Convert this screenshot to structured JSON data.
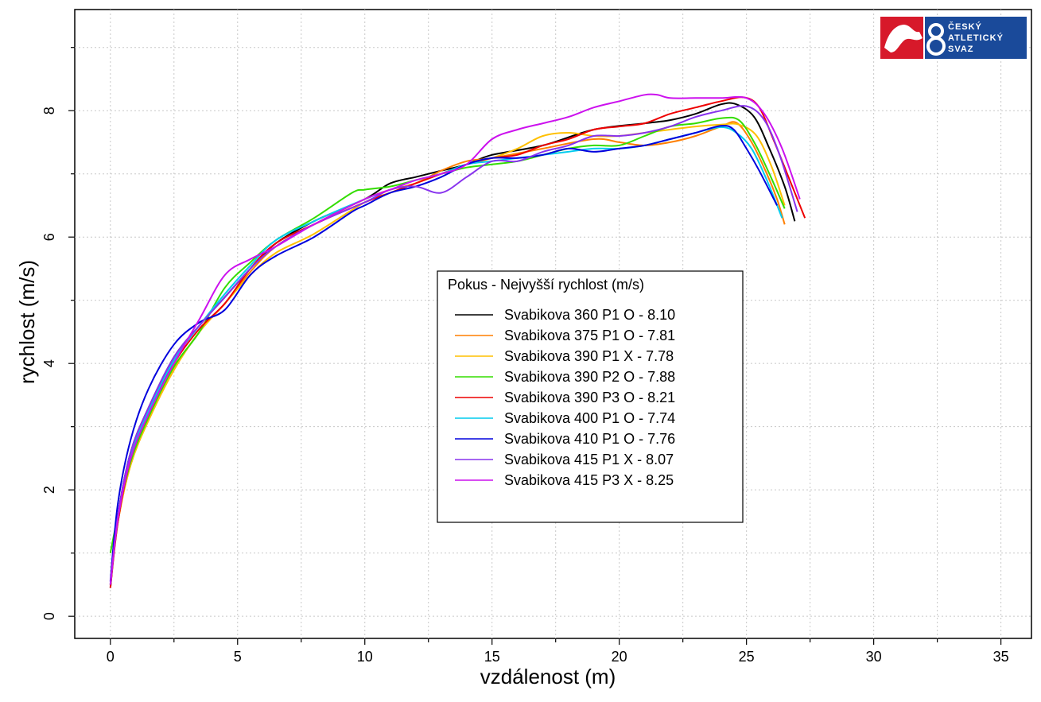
{
  "chart_data": {
    "type": "line",
    "xlabel": "vzdálenost (m)",
    "ylabel": "rychlost (m/s)",
    "xlim": [
      -1.4,
      36.2
    ],
    "ylim": [
      -0.35,
      9.6
    ],
    "xticks": [
      0,
      5,
      10,
      15,
      20,
      25,
      30,
      35
    ],
    "yticks": [
      0,
      2,
      4,
      6,
      8
    ],
    "grid": true,
    "legend": {
      "title": "Pokus - Nejvyšší rychlost (m/s)",
      "placement": "center"
    },
    "series": [
      {
        "name": "Svabikova 360 P1 O - 8.10",
        "color": "#000000",
        "points": [
          [
            0,
            0.45
          ],
          [
            0.3,
            1.6
          ],
          [
            0.8,
            2.6
          ],
          [
            1.5,
            3.3
          ],
          [
            2.5,
            4.1
          ],
          [
            3.5,
            4.6
          ],
          [
            4.5,
            5.05
          ],
          [
            5.5,
            5.5
          ],
          [
            6.5,
            5.9
          ],
          [
            8,
            6.25
          ],
          [
            10,
            6.6
          ],
          [
            11,
            6.85
          ],
          [
            12,
            6.95
          ],
          [
            13,
            7.05
          ],
          [
            14,
            7.15
          ],
          [
            15,
            7.3
          ],
          [
            17,
            7.45
          ],
          [
            19,
            7.7
          ],
          [
            21,
            7.8
          ],
          [
            22,
            7.85
          ],
          [
            23,
            7.95
          ],
          [
            24,
            8.1
          ],
          [
            24.6,
            8.1
          ],
          [
            25.3,
            7.9
          ],
          [
            25.9,
            7.4
          ],
          [
            26.5,
            6.8
          ],
          [
            26.9,
            6.25
          ]
        ]
      },
      {
        "name": "Svabikova 375 P1 O - 7.81",
        "color": "#ff7f00",
        "points": [
          [
            0,
            0.5
          ],
          [
            0.3,
            1.5
          ],
          [
            0.8,
            2.4
          ],
          [
            1.5,
            3.1
          ],
          [
            2.5,
            3.9
          ],
          [
            3.5,
            4.5
          ],
          [
            4.5,
            4.95
          ],
          [
            5.5,
            5.45
          ],
          [
            6.5,
            5.85
          ],
          [
            8,
            6.2
          ],
          [
            10,
            6.6
          ],
          [
            11,
            6.75
          ],
          [
            12,
            6.85
          ],
          [
            13,
            7.05
          ],
          [
            14,
            7.2
          ],
          [
            15,
            7.25
          ],
          [
            17,
            7.4
          ],
          [
            19,
            7.55
          ],
          [
            20,
            7.5
          ],
          [
            21,
            7.45
          ],
          [
            22,
            7.5
          ],
          [
            23,
            7.6
          ],
          [
            24,
            7.75
          ],
          [
            24.6,
            7.81
          ],
          [
            25.2,
            7.5
          ],
          [
            25.8,
            7.0
          ],
          [
            26.2,
            6.6
          ],
          [
            26.5,
            6.2
          ]
        ]
      },
      {
        "name": "Svabikova 390 P1 X - 7.78",
        "color": "#ffc000",
        "points": [
          [
            0,
            0.5
          ],
          [
            0.3,
            1.5
          ],
          [
            0.8,
            2.4
          ],
          [
            1.5,
            3.1
          ],
          [
            2.5,
            3.9
          ],
          [
            3.5,
            4.5
          ],
          [
            4.5,
            4.95
          ],
          [
            5.5,
            5.4
          ],
          [
            6.5,
            5.75
          ],
          [
            8,
            6.05
          ],
          [
            10,
            6.55
          ],
          [
            11,
            6.7
          ],
          [
            12,
            6.85
          ],
          [
            13,
            7.0
          ],
          [
            14,
            7.15
          ],
          [
            15,
            7.25
          ],
          [
            16,
            7.4
          ],
          [
            17,
            7.6
          ],
          [
            18,
            7.65
          ],
          [
            19,
            7.6
          ],
          [
            20,
            7.6
          ],
          [
            21,
            7.65
          ],
          [
            22,
            7.7
          ],
          [
            23,
            7.75
          ],
          [
            24,
            7.78
          ],
          [
            24.7,
            7.78
          ],
          [
            25.4,
            7.6
          ],
          [
            26,
            7.1
          ],
          [
            26.5,
            6.5
          ]
        ]
      },
      {
        "name": "Svabikova 390 P2 O - 7.88",
        "color": "#33dd00",
        "points": [
          [
            0,
            1.0
          ],
          [
            0.3,
            1.6
          ],
          [
            0.8,
            2.45
          ],
          [
            1.5,
            3.15
          ],
          [
            2.5,
            3.95
          ],
          [
            3.5,
            4.5
          ],
          [
            4.5,
            5.2
          ],
          [
            5.5,
            5.6
          ],
          [
            6.5,
            5.95
          ],
          [
            8,
            6.3
          ],
          [
            9.5,
            6.7
          ],
          [
            10,
            6.75
          ],
          [
            11,
            6.8
          ],
          [
            12,
            6.9
          ],
          [
            13,
            7.0
          ],
          [
            14,
            7.1
          ],
          [
            15,
            7.15
          ],
          [
            16,
            7.2
          ],
          [
            17,
            7.3
          ],
          [
            18,
            7.4
          ],
          [
            19,
            7.45
          ],
          [
            20,
            7.45
          ],
          [
            21,
            7.6
          ],
          [
            22,
            7.75
          ],
          [
            23,
            7.8
          ],
          [
            24,
            7.88
          ],
          [
            24.7,
            7.85
          ],
          [
            25.3,
            7.5
          ],
          [
            25.9,
            7.0
          ],
          [
            26.5,
            6.45
          ]
        ]
      },
      {
        "name": "Svabikova 390 P3 O - 8.21",
        "color": "#ee0000",
        "points": [
          [
            0,
            0.45
          ],
          [
            0.3,
            1.5
          ],
          [
            0.8,
            2.5
          ],
          [
            1.5,
            3.2
          ],
          [
            2.5,
            4.0
          ],
          [
            3.5,
            4.55
          ],
          [
            4.5,
            4.95
          ],
          [
            5.5,
            5.5
          ],
          [
            6.5,
            5.9
          ],
          [
            8,
            6.2
          ],
          [
            10,
            6.55
          ],
          [
            11,
            6.7
          ],
          [
            12,
            6.85
          ],
          [
            13,
            7.0
          ],
          [
            14,
            7.15
          ],
          [
            15,
            7.25
          ],
          [
            16,
            7.3
          ],
          [
            17,
            7.45
          ],
          [
            18,
            7.55
          ],
          [
            19,
            7.7
          ],
          [
            20,
            7.75
          ],
          [
            21,
            7.8
          ],
          [
            22,
            7.95
          ],
          [
            23,
            8.05
          ],
          [
            24,
            8.15
          ],
          [
            24.9,
            8.21
          ],
          [
            25.5,
            8.05
          ],
          [
            26.1,
            7.5
          ],
          [
            26.8,
            6.8
          ],
          [
            27.3,
            6.3
          ]
        ]
      },
      {
        "name": "Svabikova 400 P1 O - 7.74",
        "color": "#00ccee",
        "points": [
          [
            0,
            0.5
          ],
          [
            0.3,
            1.55
          ],
          [
            0.8,
            2.55
          ],
          [
            1.5,
            3.25
          ],
          [
            2.5,
            4.05
          ],
          [
            3.5,
            4.6
          ],
          [
            4.5,
            5.1
          ],
          [
            5.5,
            5.55
          ],
          [
            6.5,
            5.95
          ],
          [
            8,
            6.25
          ],
          [
            10,
            6.6
          ],
          [
            11,
            6.75
          ],
          [
            12,
            6.9
          ],
          [
            13,
            7.0
          ],
          [
            14,
            7.15
          ],
          [
            15,
            7.2
          ],
          [
            16,
            7.25
          ],
          [
            17,
            7.3
          ],
          [
            18,
            7.35
          ],
          [
            19,
            7.4
          ],
          [
            20,
            7.4
          ],
          [
            21,
            7.45
          ],
          [
            22,
            7.55
          ],
          [
            23,
            7.65
          ],
          [
            24,
            7.74
          ],
          [
            24.6,
            7.65
          ],
          [
            25.2,
            7.4
          ],
          [
            25.8,
            6.9
          ],
          [
            26.4,
            6.3
          ]
        ]
      },
      {
        "name": "Svabikova 410 P1 O - 7.76",
        "color": "#0000dd",
        "points": [
          [
            0,
            0.55
          ],
          [
            0.3,
            1.8
          ],
          [
            0.8,
            2.8
          ],
          [
            1.5,
            3.6
          ],
          [
            2.5,
            4.3
          ],
          [
            3.5,
            4.65
          ],
          [
            4.5,
            4.85
          ],
          [
            5.5,
            5.4
          ],
          [
            6.5,
            5.7
          ],
          [
            8,
            6.0
          ],
          [
            9.5,
            6.4
          ],
          [
            10,
            6.5
          ],
          [
            11,
            6.7
          ],
          [
            12,
            6.8
          ],
          [
            13,
            6.95
          ],
          [
            14,
            7.15
          ],
          [
            15,
            7.25
          ],
          [
            16,
            7.25
          ],
          [
            17,
            7.3
          ],
          [
            18,
            7.4
          ],
          [
            19,
            7.35
          ],
          [
            20,
            7.4
          ],
          [
            21,
            7.45
          ],
          [
            22,
            7.55
          ],
          [
            23,
            7.65
          ],
          [
            24,
            7.76
          ],
          [
            24.5,
            7.7
          ],
          [
            25,
            7.4
          ],
          [
            25.5,
            7.05
          ],
          [
            26.2,
            6.5
          ]
        ]
      },
      {
        "name": "Svabikova 415 P1 X - 8.07",
        "color": "#8833ee",
        "points": [
          [
            0,
            0.5
          ],
          [
            0.3,
            1.6
          ],
          [
            0.8,
            2.6
          ],
          [
            1.5,
            3.3
          ],
          [
            2.5,
            4.1
          ],
          [
            3.5,
            4.6
          ],
          [
            4.5,
            5.05
          ],
          [
            5.5,
            5.5
          ],
          [
            6.5,
            5.85
          ],
          [
            8,
            6.2
          ],
          [
            10,
            6.55
          ],
          [
            11,
            6.75
          ],
          [
            12,
            6.8
          ],
          [
            13,
            6.7
          ],
          [
            14,
            6.95
          ],
          [
            15,
            7.2
          ],
          [
            16,
            7.2
          ],
          [
            17,
            7.35
          ],
          [
            18,
            7.45
          ],
          [
            19,
            7.6
          ],
          [
            20,
            7.6
          ],
          [
            21,
            7.65
          ],
          [
            22,
            7.75
          ],
          [
            23,
            7.9
          ],
          [
            24,
            8.0
          ],
          [
            25,
            8.07
          ],
          [
            25.7,
            7.85
          ],
          [
            26.3,
            7.3
          ],
          [
            27,
            6.4
          ]
        ]
      },
      {
        "name": "Svabikova 415 P3 X - 8.25",
        "color": "#cc11ee",
        "points": [
          [
            0,
            0.5
          ],
          [
            0.3,
            1.55
          ],
          [
            0.8,
            2.5
          ],
          [
            1.5,
            3.2
          ],
          [
            2.5,
            4.0
          ],
          [
            3.5,
            4.7
          ],
          [
            4.5,
            5.4
          ],
          [
            5.5,
            5.65
          ],
          [
            6.5,
            5.85
          ],
          [
            8,
            6.2
          ],
          [
            10,
            6.6
          ],
          [
            11,
            6.75
          ],
          [
            12,
            6.9
          ],
          [
            13,
            7.0
          ],
          [
            14,
            7.15
          ],
          [
            15,
            7.55
          ],
          [
            16,
            7.7
          ],
          [
            17,
            7.8
          ],
          [
            18,
            7.9
          ],
          [
            19,
            8.05
          ],
          [
            20,
            8.15
          ],
          [
            21,
            8.25
          ],
          [
            21.5,
            8.25
          ],
          [
            22,
            8.2
          ],
          [
            23,
            8.2
          ],
          [
            24,
            8.2
          ],
          [
            25,
            8.2
          ],
          [
            25.7,
            7.95
          ],
          [
            26.4,
            7.4
          ],
          [
            27.1,
            6.6
          ]
        ]
      }
    ]
  },
  "logo": {
    "line1": "ČESKÝ",
    "line2": "ATLETICKÝ",
    "line3": "SVAZ",
    "red": "#d7192a",
    "blue": "#1a4a9a"
  }
}
